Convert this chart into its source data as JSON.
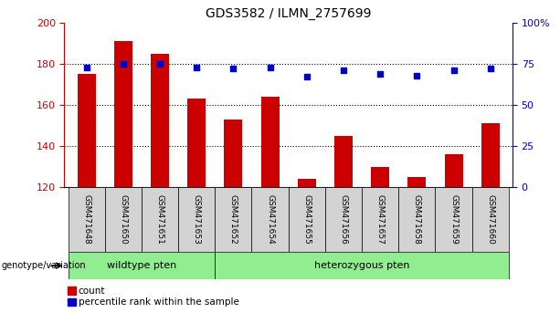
{
  "title": "GDS3582 / ILMN_2757699",
  "samples": [
    "GSM471648",
    "GSM471650",
    "GSM471651",
    "GSM471653",
    "GSM471652",
    "GSM471654",
    "GSM471655",
    "GSM471656",
    "GSM471657",
    "GSM471658",
    "GSM471659",
    "GSM471660"
  ],
  "counts": [
    175,
    191,
    185,
    163,
    153,
    164,
    124,
    145,
    130,
    125,
    136,
    151
  ],
  "percentiles": [
    73,
    75,
    75,
    73,
    72,
    73,
    67,
    71,
    69,
    68,
    71,
    72
  ],
  "bar_color": "#CC0000",
  "dot_color": "#0000CC",
  "ylim_left": [
    120,
    200
  ],
  "ylim_right": [
    0,
    100
  ],
  "yticks_left": [
    120,
    140,
    160,
    180,
    200
  ],
  "yticks_right": [
    0,
    25,
    50,
    75,
    100
  ],
  "ytick_labels_right": [
    "0",
    "25",
    "50",
    "75",
    "100%"
  ],
  "wildtype_count": 4,
  "heterozygous_count": 8,
  "wildtype_label": "wildtype pten",
  "heterozygous_label": "heterozygous pten",
  "genotype_label": "genotype/variation",
  "wildtype_color": "#90EE90",
  "heterozygous_color": "#90EE90",
  "legend_count_label": "count",
  "legend_percentile_label": "percentile rank within the sample",
  "bar_bottom": 120,
  "sample_box_color": "#D3D3D3",
  "hline_y": [
    140,
    160,
    180
  ],
  "figsize": [
    6.13,
    3.54
  ],
  "dpi": 100
}
